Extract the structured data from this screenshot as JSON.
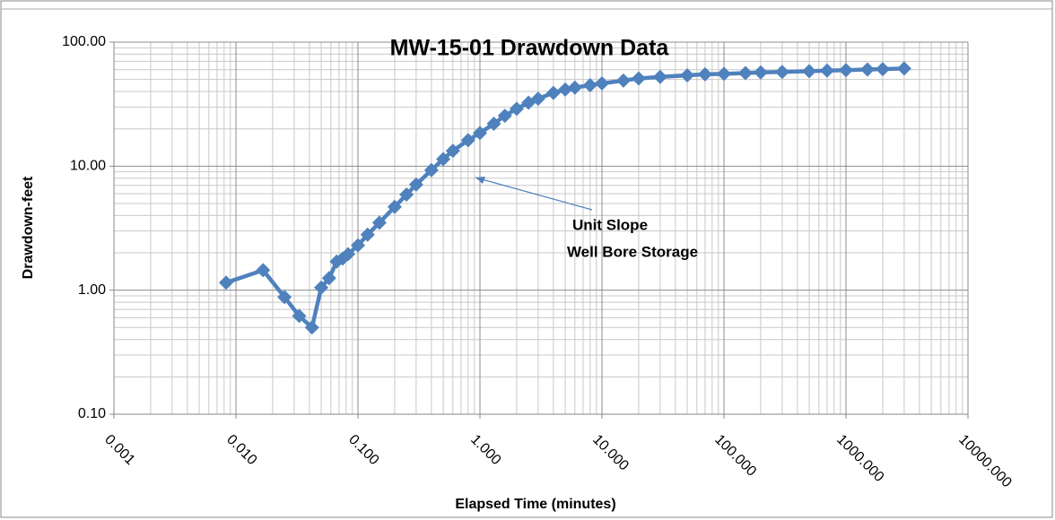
{
  "chart_data": {
    "type": "line",
    "title": "MW-15-01 Drawdown Data",
    "x_label": "Elapsed Time (minutes)",
    "y_label": "Drawdown-feet",
    "annotation": [
      "Unit Slope",
      "Well Bore Storage"
    ],
    "x_log": true,
    "y_log": true,
    "grid": true,
    "minor_grid": true,
    "xlim": [
      0.001,
      10000
    ],
    "ylim": [
      0.1,
      100
    ],
    "xticks": [
      0.001,
      {
        "value": 0.01,
        "label": "0.010"
      },
      {
        "value": 0.1,
        "label": "0.100"
      },
      {
        "value": 1,
        "label": "1.000"
      },
      {
        "value": 10,
        "label": "10.000"
      },
      {
        "value": 100,
        "label": "100.000"
      },
      {
        "value": 1000,
        "label": "1000.000"
      },
      {
        "value": 10000,
        "label": "10000.000"
      }
    ],
    "yticks": [
      {
        "value": 0.1,
        "label": "0.10"
      },
      {
        "value": 1,
        "label": "1.00"
      },
      {
        "value": 10,
        "label": "10.00"
      },
      {
        "value": 100,
        "label": "100.00"
      }
    ],
    "series": [
      {
        "name": "Drawdown",
        "color": "#4f81bd",
        "x": [
          0.0083,
          0.0167,
          0.025,
          0.033,
          0.042,
          0.05,
          0.058,
          0.067,
          0.075,
          0.083,
          0.1,
          0.12,
          0.15,
          0.2,
          0.25,
          0.3,
          0.4,
          0.5,
          0.6,
          0.8,
          1,
          1.3,
          1.6,
          2,
          2.5,
          3,
          4,
          5,
          6,
          8,
          10,
          15,
          20,
          30,
          50,
          70,
          100,
          150,
          200,
          300,
          500,
          700,
          1000,
          1500,
          2000,
          3000
        ],
        "values": [
          1.15,
          1.45,
          0.88,
          0.62,
          0.5,
          1.05,
          1.25,
          1.7,
          1.8,
          1.95,
          2.3,
          2.8,
          3.5,
          4.7,
          5.9,
          7.1,
          9.3,
          11.4,
          13.3,
          16.2,
          18.5,
          22,
          25.5,
          29,
          32.5,
          35,
          39,
          41.5,
          43,
          45,
          46.5,
          49,
          51,
          52.5,
          54,
          55,
          55.5,
          56.3,
          57,
          57.5,
          58.3,
          59,
          59.5,
          60.2,
          60.6,
          61.3
        ]
      }
    ]
  }
}
